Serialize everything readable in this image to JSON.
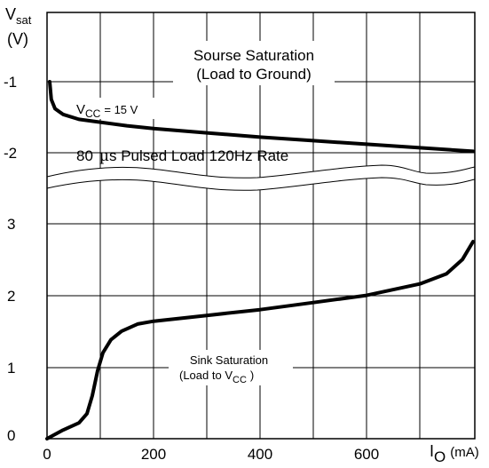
{
  "chart_data": {
    "type": "line",
    "y_axis_title": {
      "main": "V",
      "sub": "sat",
      "unit": "(V)"
    },
    "x_axis_title": {
      "main": "I",
      "sub": "O",
      "unit": "(mA)"
    },
    "x_ticks": [
      "0",
      "200",
      "400",
      "600"
    ],
    "y_ticks_upper": [
      "-1",
      "-2"
    ],
    "y_ticks_lower": [
      "0",
      "1",
      "2",
      "3"
    ],
    "grid": true,
    "xlim": [
      0,
      800
    ],
    "annotations": {
      "source_title": "Sourse Saturation",
      "source_subtitle": "(Load to Ground)",
      "vcc_main": "V",
      "vcc_sub": "CC",
      "vcc_value": "= 15 V",
      "pulsed_note_a": "80",
      "pulsed_note_mu": "µ",
      "pulsed_note_b": "s Pulsed Load 120Hz Rate",
      "sink_title": "Sink Saturation",
      "sink_subtitle_main": "(Load to V",
      "sink_subtitle_sub": "CC",
      "sink_subtitle_end": ")"
    },
    "series": [
      {
        "key": "source",
        "x": [
          5,
          8,
          15,
          30,
          60,
          100,
          150,
          200,
          300,
          400,
          500,
          600,
          700,
          800
        ],
        "y": [
          -1.0,
          -1.25,
          -1.38,
          -1.46,
          -1.53,
          -1.57,
          -1.62,
          -1.66,
          -1.72,
          -1.78,
          -1.83,
          -1.88,
          -1.93,
          -1.98
        ]
      },
      {
        "key": "sink",
        "x": [
          0,
          30,
          60,
          75,
          85,
          95,
          105,
          120,
          140,
          170,
          200,
          300,
          400,
          500,
          600,
          700,
          750,
          780,
          800
        ],
        "y": [
          0,
          0.12,
          0.22,
          0.35,
          0.6,
          0.95,
          1.2,
          1.38,
          1.5,
          1.6,
          1.64,
          1.72,
          1.8,
          1.9,
          2.0,
          2.16,
          2.3,
          2.5,
          2.75
        ]
      }
    ]
  }
}
